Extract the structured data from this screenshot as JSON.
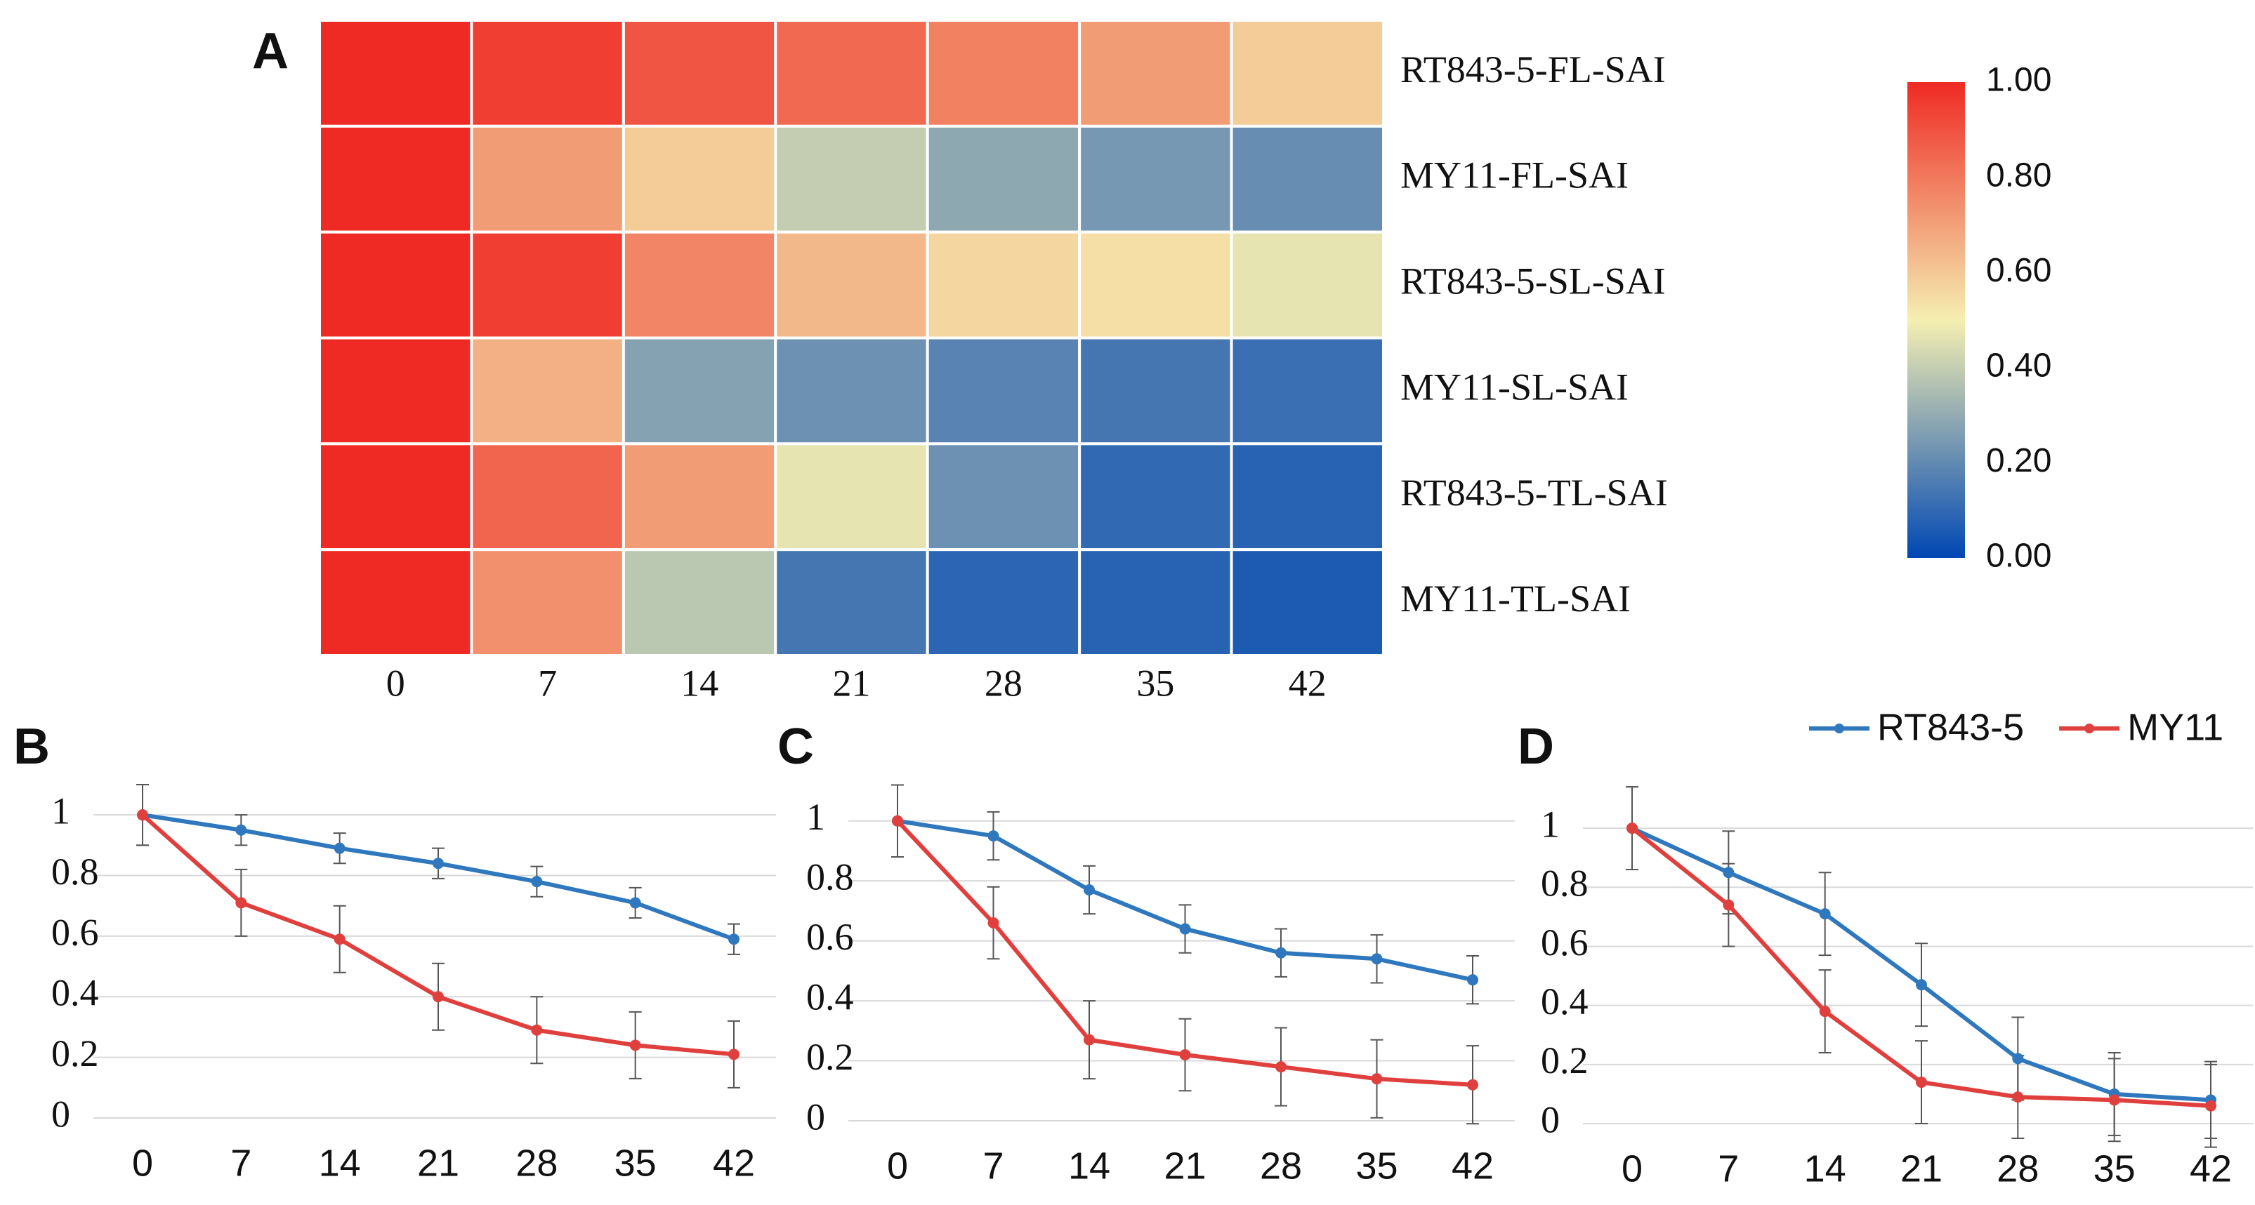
{
  "chart_data": [
    {
      "type": "heatmap",
      "label": "A",
      "x": [
        0,
        7,
        14,
        21,
        28,
        35,
        42
      ],
      "y": [
        "RT843-5-FL-SAI",
        "MY11-FL-SAI",
        "RT843-5-SL-SAI",
        "MY11-SL-SAI",
        "RT843-5-TL-SAI",
        "MY11-TL-SAI"
      ],
      "values": [
        [
          1.0,
          0.95,
          0.89,
          0.84,
          0.78,
          0.71,
          0.59
        ],
        [
          1.0,
          0.71,
          0.59,
          0.4,
          0.29,
          0.24,
          0.21
        ],
        [
          1.0,
          0.95,
          0.77,
          0.64,
          0.56,
          0.54,
          0.47
        ],
        [
          1.0,
          0.66,
          0.27,
          0.22,
          0.18,
          0.14,
          0.12
        ],
        [
          1.0,
          0.85,
          0.71,
          0.47,
          0.22,
          0.1,
          0.08
        ],
        [
          1.0,
          0.74,
          0.38,
          0.14,
          0.09,
          0.08,
          0.06
        ]
      ],
      "colors": [
        "#0047b3",
        "#f5efb1",
        "#ef2a24"
      ],
      "clim": [
        0,
        1
      ],
      "cticks": [
        {
          "value": 0,
          "label": "0.00"
        },
        {
          "value": 0.2,
          "label": "0.20"
        },
        {
          "value": 0.4,
          "label": "0.40"
        },
        {
          "value": 0.6,
          "label": "0.60"
        },
        {
          "value": 0.8,
          "label": "0.80"
        },
        {
          "value": 1,
          "label": "1.00"
        }
      ]
    },
    {
      "type": "line",
      "label": "B",
      "x": [
        0,
        7,
        14,
        21,
        28,
        35,
        42
      ],
      "xlim": [
        0,
        42
      ],
      "xticks": [
        0,
        7,
        14,
        21,
        28,
        35,
        42
      ],
      "ylim": [
        0,
        1.1
      ],
      "yticks": [
        0,
        0.2,
        0.4,
        0.6,
        0.8,
        1
      ],
      "grid": true,
      "series": [
        {
          "color": "#2f78bd",
          "values": [
            1,
            0.95,
            0.89,
            0.84,
            0.78,
            0.71,
            0.59
          ],
          "errors": [
            0.1,
            0.05,
            0.05,
            0.05,
            0.05,
            0.05,
            0.05
          ]
        },
        {
          "color": "#e0403d",
          "values": [
            1,
            0.71,
            0.59,
            0.4,
            0.29,
            0.24,
            0.21
          ],
          "errors": [
            0.1,
            0.11,
            0.11,
            0.11,
            0.11,
            0.11,
            0.11
          ]
        }
      ]
    },
    {
      "type": "line",
      "label": "C",
      "x": [
        0,
        7,
        14,
        21,
        28,
        35,
        42
      ],
      "xlim": [
        0,
        42
      ],
      "xticks": [
        0,
        7,
        14,
        21,
        28,
        35,
        42
      ],
      "ylim": [
        0,
        1.1
      ],
      "yticks": [
        0,
        0.2,
        0.4,
        0.6,
        0.8,
        1
      ],
      "grid": true,
      "series": [
        {
          "color": "#2f78bd",
          "values": [
            1,
            0.95,
            0.77,
            0.64,
            0.56,
            0.54,
            0.47
          ],
          "errors": [
            0.12,
            0.08,
            0.08,
            0.08,
            0.08,
            0.08,
            0.08
          ]
        },
        {
          "color": "#e0403d",
          "values": [
            1,
            0.66,
            0.27,
            0.22,
            0.18,
            0.14,
            0.12
          ],
          "errors": [
            0.12,
            0.12,
            0.13,
            0.12,
            0.13,
            0.13,
            0.13
          ]
        }
      ]
    },
    {
      "type": "line",
      "label": "D",
      "x": [
        0,
        7,
        14,
        21,
        28,
        35,
        42
      ],
      "xlim": [
        0,
        42
      ],
      "xticks": [
        0,
        7,
        14,
        21,
        28,
        35,
        42
      ],
      "ylim": [
        0,
        1.1
      ],
      "yticks": [
        0,
        0.2,
        0.4,
        0.6,
        0.8,
        1
      ],
      "grid": true,
      "legend": "top-right",
      "series": [
        {
          "name": "RT843-5",
          "color": "#2f78bd",
          "values": [
            1,
            0.85,
            0.71,
            0.47,
            0.22,
            0.1,
            0.08
          ],
          "errors": [
            0.14,
            0.14,
            0.14,
            0.14,
            0.14,
            0.14,
            0.13
          ]
        },
        {
          "name": "MY11",
          "color": "#e0403d",
          "values": [
            1,
            0.74,
            0.38,
            0.14,
            0.09,
            0.08,
            0.06
          ],
          "errors": [
            0.14,
            0.14,
            0.14,
            0.14,
            0.14,
            0.14,
            0.14
          ]
        }
      ]
    }
  ]
}
